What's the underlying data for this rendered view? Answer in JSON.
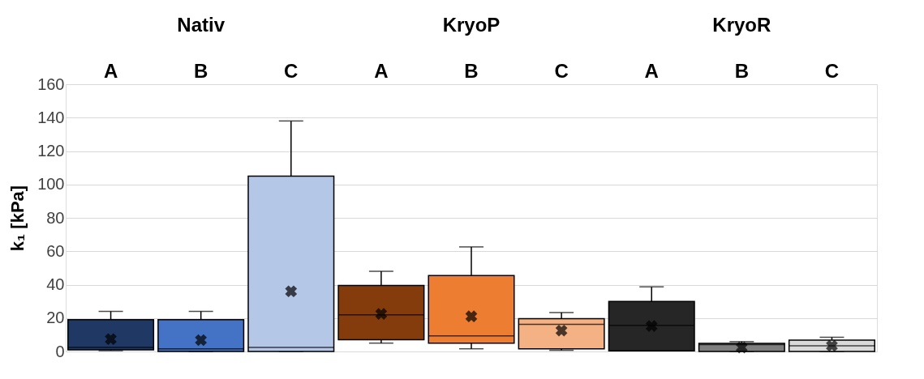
{
  "chart_data": {
    "type": "box",
    "categories": [
      "A",
      "B",
      "C",
      "A",
      "B",
      "C",
      "A",
      "B",
      "C"
    ],
    "ylabel": "k₁ [kPa]",
    "annotations": [
      "Nativ",
      "KryoP",
      "KryoR"
    ],
    "colors": [
      "#1f3864",
      "#4472c4",
      "#b4c7e7",
      "#843c0c",
      "#ed7d31",
      "#f4b183",
      "#262626",
      "#7f7f7f",
      "#d9d9d9"
    ],
    "boxes": [
      {
        "low": 0.5,
        "q1": 1,
        "median": 2.4,
        "q3": 19,
        "high": 24,
        "mean": 7.4
      },
      {
        "low": 0,
        "q1": 0,
        "median": 1.6,
        "q3": 19,
        "high": 24,
        "mean": 6.8
      },
      {
        "low": 0,
        "q1": 0,
        "median": 2.4,
        "q3": 105,
        "high": 138,
        "mean": 36
      },
      {
        "low": 5,
        "q1": 7,
        "median": 22,
        "q3": 39.5,
        "high": 48,
        "mean": 22.5
      },
      {
        "low": 1.6,
        "q1": 5,
        "median": 9.3,
        "q3": 45.4,
        "high": 62.6,
        "mean": 21
      },
      {
        "low": 0.7,
        "q1": 1.6,
        "median": 16.3,
        "q3": 19.6,
        "high": 23.3,
        "mean": 12.5
      },
      {
        "low": 0.4,
        "q1": 0.4,
        "median": 15.6,
        "q3": 30,
        "high": 38.7,
        "mean": 15.2
      },
      {
        "low": 0,
        "q1": 0,
        "median": 4.1,
        "q3": 4.9,
        "high": 5.9,
        "mean": 2.4
      },
      {
        "low": 0,
        "q1": 0,
        "median": 3.4,
        "q3": 6.8,
        "high": 8.5,
        "mean": 3.4
      }
    ],
    "ylim": [
      0,
      160
    ],
    "yticks": [
      0,
      20,
      40,
      60,
      80,
      100,
      120,
      140,
      160
    ],
    "grid": "y"
  }
}
